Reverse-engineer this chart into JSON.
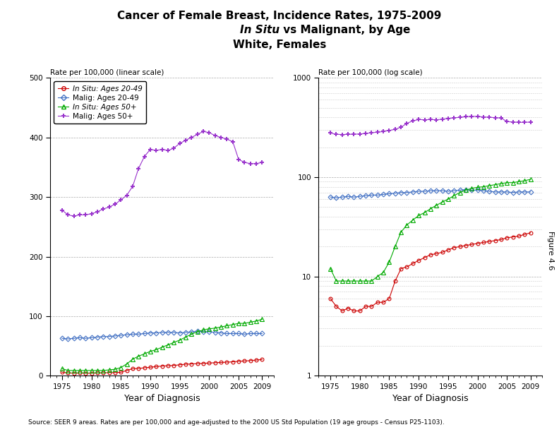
{
  "title_line1": "Cancer of Female Breast, Incidence Rates, 1975-2009",
  "title_line2_italic": "In Situ",
  "title_line2_rest": " vs Malignant, by Age",
  "title_line3": "White, Females",
  "xlabel": "Year of Diagnosis",
  "ylabel_linear": "Rate per 100,000 (linear scale)",
  "ylabel_log": "Rate per 100,000 (log scale)",
  "footnote": "Source: SEER 9 areas. Rates are per 100,000 and age-adjusted to the 2000 US Std Population (19 age groups - Census P25-1103).",
  "figure_label": "Figure 4.6",
  "years": [
    1975,
    1976,
    1977,
    1978,
    1979,
    1980,
    1981,
    1982,
    1983,
    1984,
    1985,
    1986,
    1987,
    1988,
    1989,
    1990,
    1991,
    1992,
    1993,
    1994,
    1995,
    1996,
    1997,
    1998,
    1999,
    2000,
    2001,
    2002,
    2003,
    2004,
    2005,
    2006,
    2007,
    2008,
    2009
  ],
  "insitu_2049": [
    6.0,
    5.0,
    4.5,
    4.8,
    4.5,
    4.5,
    5.0,
    5.0,
    5.5,
    5.5,
    6.0,
    9.0,
    12.0,
    12.5,
    13.5,
    14.5,
    15.5,
    16.5,
    17.0,
    17.5,
    18.5,
    19.5,
    20.0,
    20.5,
    21.0,
    21.5,
    22.0,
    22.5,
    23.0,
    23.5,
    24.5,
    25.0,
    25.5,
    26.5,
    27.5
  ],
  "malig_2049": [
    63,
    62,
    63,
    64,
    63,
    64,
    65,
    66,
    66,
    67,
    68,
    69,
    70,
    70,
    71,
    72,
    72,
    73,
    73,
    73,
    72,
    73,
    74,
    75,
    74,
    74,
    73,
    72,
    71,
    71,
    71,
    70,
    71,
    71,
    71
  ],
  "insitu_50plus": [
    12,
    9,
    9,
    9,
    9,
    9,
    9,
    9,
    10,
    11,
    14,
    20,
    28,
    33,
    37,
    41,
    44,
    48,
    52,
    56,
    60,
    65,
    70,
    74,
    77,
    79,
    80,
    82,
    84,
    86,
    88,
    88,
    90,
    92,
    95
  ],
  "malig_50plus": [
    278,
    270,
    268,
    270,
    270,
    272,
    275,
    280,
    283,
    288,
    295,
    303,
    318,
    348,
    368,
    380,
    378,
    380,
    378,
    382,
    390,
    395,
    400,
    405,
    410,
    408,
    403,
    400,
    397,
    393,
    363,
    358,
    356,
    356,
    358
  ],
  "color_insitu_2049": "#cc0000",
  "color_malig_2049": "#4472c4",
  "color_insitu_50plus": "#00aa00",
  "color_malig_50plus": "#9933cc"
}
